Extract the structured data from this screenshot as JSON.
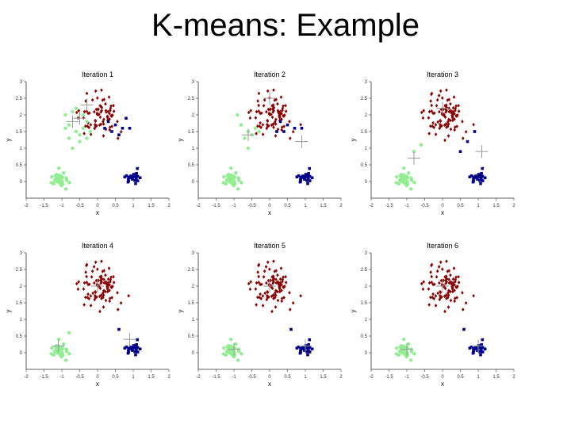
{
  "slide": {
    "title": "K-means: Example"
  },
  "colors": {
    "red": "#8b0000",
    "green": "#90ee90",
    "blue": "#00008b",
    "centroid": "#999999",
    "axis": "#333333"
  },
  "axis": {
    "xlabel": "x",
    "ylabel": "y",
    "xlim": [
      -2,
      2
    ],
    "ylim": [
      -0.5,
      3
    ],
    "xticks": [
      "-2",
      "-1.5",
      "-1",
      "-0.5",
      "0",
      "0.5",
      "1",
      "1.5",
      "2"
    ],
    "xtick_values": [
      -2,
      -1.5,
      -1,
      -0.5,
      0,
      0.5,
      1,
      1.5,
      2
    ],
    "yticks": [
      "0",
      "0.5",
      "1",
      "1.5",
      "2",
      "2.5",
      "3"
    ],
    "ytick_values": [
      0,
      0.5,
      1,
      1.5,
      2,
      2.5,
      3
    ]
  },
  "chart_data": [
    {
      "type": "scatter",
      "title": "Iteration 1",
      "centroids": [
        [
          -0.3,
          2.3
        ],
        [
          -0.7,
          1.8
        ],
        [
          -0.5,
          1.9
        ]
      ],
      "green_extra": [
        [
          -0.6,
          1.5
        ],
        [
          -0.9,
          2.0
        ],
        [
          -0.8,
          1.7
        ],
        [
          -0.4,
          1.6
        ],
        [
          -0.5,
          1.4
        ],
        [
          -0.7,
          2.1
        ],
        [
          -0.3,
          1.8
        ],
        [
          -0.6,
          2.2
        ],
        [
          -0.2,
          1.5
        ],
        [
          -0.8,
          1.3
        ],
        [
          -0.4,
          2.0
        ],
        [
          -0.5,
          1.2
        ],
        [
          -0.9,
          1.6
        ],
        [
          -0.3,
          1.3
        ],
        [
          -0.7,
          1.0
        ]
      ],
      "blue_extra": [
        [
          0.5,
          1.7
        ],
        [
          0.7,
          1.6
        ],
        [
          0.4,
          1.5
        ],
        [
          0.9,
          1.6
        ],
        [
          0.3,
          1.8
        ],
        [
          0.6,
          1.4
        ],
        [
          0.8,
          1.9
        ],
        [
          0.2,
          1.6
        ]
      ],
      "red_trim": 20
    },
    {
      "type": "scatter",
      "title": "Iteration 2",
      "centroids": [
        [
          -0.6,
          1.4
        ],
        [
          0.9,
          1.2
        ],
        [
          0,
          2.5
        ]
      ],
      "green_extra": [
        [
          -0.6,
          1.5
        ],
        [
          -0.9,
          2.0
        ],
        [
          -0.8,
          1.7
        ],
        [
          -0.4,
          1.6
        ],
        [
          -0.5,
          1.4
        ],
        [
          -0.7,
          1.3
        ],
        [
          -0.3,
          1.5
        ],
        [
          -0.6,
          1.0
        ]
      ],
      "blue_extra": [
        [
          0.5,
          1.7
        ],
        [
          0.7,
          1.6
        ],
        [
          0.4,
          1.5
        ],
        [
          0.9,
          1.6
        ],
        [
          0.3,
          1.8
        ],
        [
          0.2,
          1.5
        ]
      ],
      "red_trim": 10
    },
    {
      "type": "scatter",
      "title": "Iteration 3",
      "centroids": [
        [
          -0.8,
          0.7
        ],
        [
          1.1,
          0.9
        ],
        [
          0,
          2.2
        ]
      ],
      "green_extra": [
        [
          -0.8,
          0.9
        ],
        [
          -0.6,
          1.1
        ]
      ],
      "blue_extra": [
        [
          0.7,
          1.2
        ],
        [
          0.9,
          1.5
        ],
        [
          0.5,
          0.9
        ]
      ],
      "red_trim": 0
    },
    {
      "type": "scatter",
      "title": "Iteration 4",
      "centroids": [
        [
          -1.1,
          0.2
        ],
        [
          0.9,
          0.4
        ],
        [
          0,
          2.0
        ]
      ],
      "green_extra": [
        [
          -0.8,
          0.6
        ]
      ],
      "blue_extra": [
        [
          0.6,
          0.7
        ]
      ],
      "red_trim": 0
    },
    {
      "type": "scatter",
      "title": "Iteration 5",
      "centroids": [
        [
          -1.0,
          0.1
        ],
        [
          1.0,
          0.2
        ],
        [
          0,
          2.0
        ]
      ],
      "green_extra": [],
      "blue_extra": [
        [
          0.6,
          0.7
        ]
      ],
      "red_trim": 0
    },
    {
      "type": "scatter",
      "title": "Iteration 6",
      "centroids": [
        [
          -1.0,
          0.1
        ],
        [
          1.0,
          0.2
        ],
        [
          0,
          2.0
        ]
      ],
      "green_extra": [],
      "blue_extra": [
        [
          0.6,
          0.7
        ]
      ],
      "red_trim": 0
    }
  ]
}
